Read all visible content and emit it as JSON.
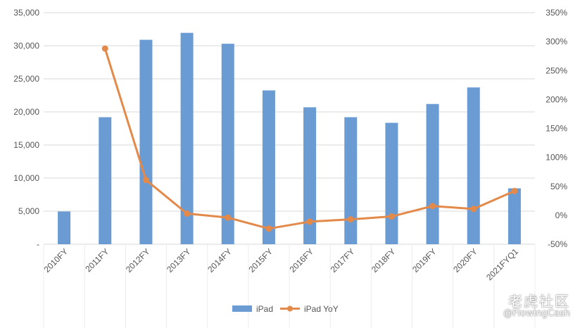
{
  "chart_data": {
    "type": "bar",
    "categories": [
      "2010FY",
      "2011FY",
      "2012FY",
      "2013FY",
      "2014FY",
      "2015FY",
      "2016FY",
      "2017FY",
      "2018FY",
      "2019FY",
      "2020FY",
      "2021FYQ1"
    ],
    "series": [
      {
        "name": "iPad",
        "type": "bar",
        "axis": "left",
        "color": "#6a9bd3",
        "values": [
          4950,
          19200,
          30900,
          31950,
          30300,
          23250,
          20700,
          19200,
          18350,
          21200,
          23700,
          8450
        ]
      },
      {
        "name": "iPad YoY",
        "type": "line",
        "axis": "right",
        "color": "#e3894a",
        "values": [
          null,
          288,
          61,
          3,
          -4,
          -23,
          -11,
          -7,
          -2,
          16,
          11,
          42
        ]
      }
    ],
    "left_axis": {
      "ylim": [
        0,
        35000
      ],
      "ticks": [
        "-",
        "5,000",
        "10,000",
        "15,000",
        "20,000",
        "25,000",
        "30,000",
        "35,000"
      ]
    },
    "right_axis": {
      "ylim": [
        -50,
        350
      ],
      "ticks": [
        "-50%",
        "0%",
        "50%",
        "100%",
        "150%",
        "200%",
        "250%",
        "300%",
        "350%"
      ]
    },
    "grid": true,
    "legend": "bottom"
  },
  "watermark": {
    "text": "老虎社区",
    "handle": "@FlowingCash"
  }
}
